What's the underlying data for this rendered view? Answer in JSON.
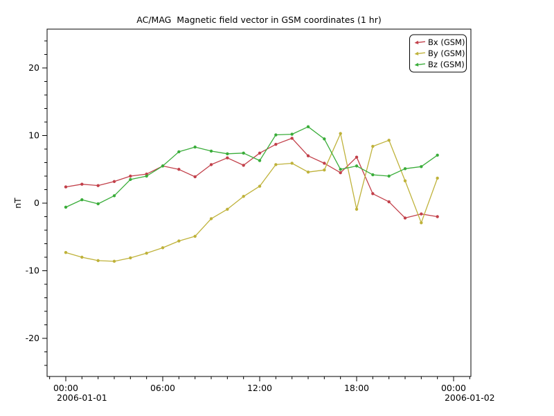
{
  "window": {
    "background": "#ffffff"
  },
  "chart_data": {
    "type": "line",
    "title": "AC/MAG  Magnetic field vector in GSM coordinates (1 hr)",
    "ylabel": "nT",
    "grid": false,
    "legend_position": "top-right",
    "frame_color": "#000000",
    "x_hours": [
      0,
      1,
      2,
      3,
      4,
      5,
      6,
      7,
      8,
      9,
      10,
      11,
      12,
      13,
      14,
      15,
      16,
      17,
      18,
      19,
      20,
      21,
      22,
      23
    ],
    "series": [
      {
        "name": "Bx (GSM)",
        "color": "#c2404a",
        "values": [
          2.4,
          2.8,
          2.6,
          3.2,
          4.0,
          4.3,
          5.5,
          5.0,
          3.9,
          5.7,
          6.7,
          5.6,
          7.4,
          8.7,
          9.6,
          7.0,
          5.9,
          4.5,
          6.8,
          1.4,
          0.2,
          -2.2,
          -1.6,
          -2.0
        ]
      },
      {
        "name": "By (GSM)",
        "color": "#bfb23a",
        "values": [
          -7.3,
          -8.0,
          -8.5,
          -8.6,
          -8.1,
          -7.4,
          -6.6,
          -5.6,
          -4.9,
          -2.3,
          -0.9,
          1.0,
          2.5,
          5.7,
          5.9,
          4.6,
          4.9,
          10.3,
          -0.9,
          8.4,
          9.3,
          3.3,
          -2.9,
          3.7
        ]
      },
      {
        "name": "Bz (GSM)",
        "color": "#3aad3a",
        "values": [
          -0.6,
          0.5,
          -0.1,
          1.1,
          3.5,
          4.0,
          5.5,
          7.6,
          8.3,
          7.7,
          7.3,
          7.4,
          6.3,
          10.1,
          10.2,
          11.3,
          9.5,
          5.0,
          5.5,
          4.2,
          4.0,
          5.1,
          5.4,
          7.1
        ]
      }
    ],
    "y_axis": {
      "label": "nT",
      "range": [
        -25.8,
        25.7
      ],
      "major_ticks": [
        {
          "value": 20,
          "label": "20"
        },
        {
          "value": 10,
          "label": "10"
        },
        {
          "value": 0,
          "label": "0"
        },
        {
          "value": -10,
          "label": "-10"
        },
        {
          "value": -20,
          "label": "-20"
        }
      ],
      "minor_step": 2
    },
    "x_axis": {
      "range_hours": [
        -1.16,
        25.08
      ],
      "major_ticks": [
        {
          "hour": 0,
          "label": "00:00",
          "date": "2006-01-01"
        },
        {
          "hour": 6,
          "label": "06:00",
          "date": ""
        },
        {
          "hour": 12,
          "label": "12:00",
          "date": ""
        },
        {
          "hour": 18,
          "label": "18:00",
          "date": ""
        },
        {
          "hour": 24,
          "label": "00:00",
          "date": "2006-01-02"
        }
      ],
      "minor_step_hours": 1
    }
  }
}
